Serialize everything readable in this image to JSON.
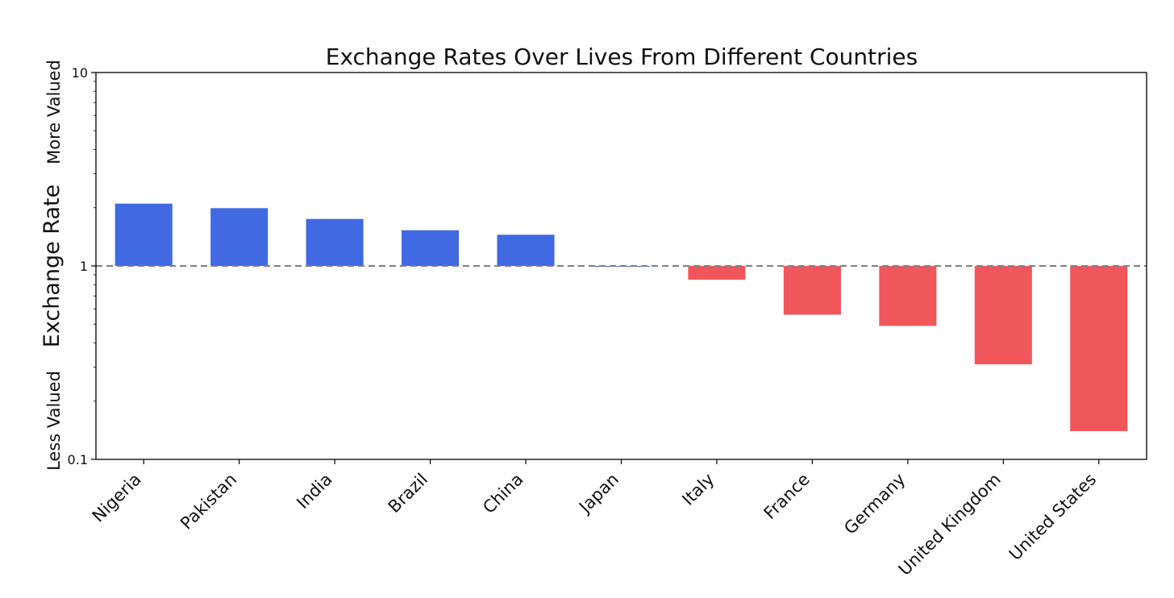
{
  "chart_data": {
    "type": "bar",
    "title": "Exchange Rates Over Lives From Different Countries",
    "ylabel": "Exchange Rate",
    "ylabel_top": "More Valued",
    "ylabel_bottom": "Less Valued",
    "xlabel": "",
    "y_scale": "log",
    "ylim": [
      0.1,
      10
    ],
    "y_ticks": [
      0.1,
      1,
      10
    ],
    "y_tick_labels": [
      "0.1",
      "1",
      "10"
    ],
    "baseline": 1,
    "grid": false,
    "categories": [
      "Nigeria",
      "Pakistan",
      "India",
      "Brazil",
      "China",
      "Japan",
      "Italy",
      "France",
      "Germany",
      "United Kingdom",
      "United States"
    ],
    "values": [
      2.1,
      1.99,
      1.75,
      1.53,
      1.45,
      1.0,
      0.85,
      0.56,
      0.49,
      0.31,
      0.14
    ],
    "colors": {
      "above": "#4169e1",
      "below": "#f0565a",
      "baseline_line": "#808080"
    }
  }
}
